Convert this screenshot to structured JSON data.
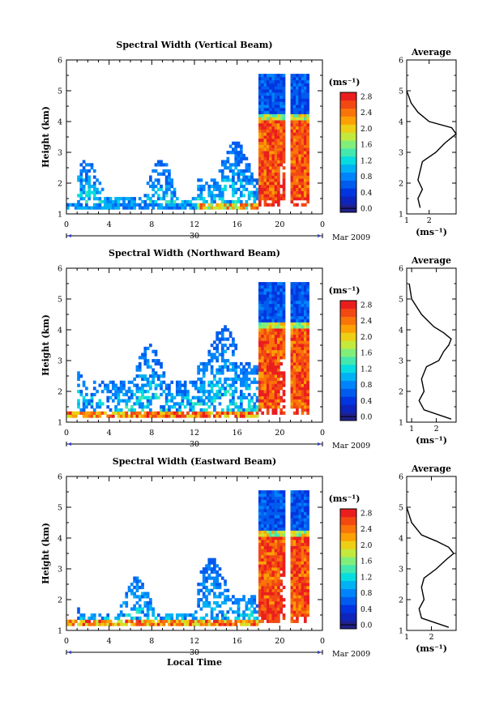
{
  "figure": {
    "xlabel": "Local Time",
    "average_title": "Average",
    "unit_label": "(ms⁻¹)",
    "date_day": "30",
    "date_month_year": "Mar 2009"
  },
  "chart_data": [
    {
      "type": "heatmap",
      "title": "Spectral Width (Vertical Beam)",
      "ylabel": "Height (km)",
      "xlim": [
        0,
        24
      ],
      "ylim": [
        1,
        6
      ],
      "xticks": [
        "0",
        "4",
        "8",
        "12",
        "16",
        "20",
        "0"
      ],
      "yticks": [
        "1",
        "2",
        "3",
        "4",
        "5",
        "6"
      ],
      "colorbar_ticks": [
        "0.0",
        "0.4",
        "0.8",
        "1.2",
        "1.6",
        "2.0",
        "2.4",
        "2.8"
      ],
      "colorbar_range": [
        0,
        3.0
      ],
      "average": {
        "xticks": [
          "1",
          "2"
        ],
        "xlim": [
          1,
          3.2
        ],
        "heights": [
          1.2,
          1.5,
          1.8,
          2.1,
          2.4,
          2.7,
          3.0,
          3.3,
          3.6,
          3.8,
          4.0,
          4.3,
          4.6,
          5.0
        ],
        "values": [
          1.6,
          1.5,
          1.7,
          1.5,
          1.6,
          1.7,
          2.3,
          2.7,
          3.2,
          3.0,
          2.0,
          1.5,
          1.2,
          1.0
        ]
      }
    },
    {
      "type": "heatmap",
      "title": "Spectral Width (Northward Beam)",
      "ylabel": "Height (km)",
      "xlim": [
        0,
        24
      ],
      "ylim": [
        1,
        6
      ],
      "xticks": [
        "0",
        "4",
        "8",
        "12",
        "16",
        "20",
        "0"
      ],
      "yticks": [
        "1",
        "2",
        "3",
        "4",
        "5",
        "6"
      ],
      "colorbar_ticks": [
        "0.0",
        "0.4",
        "0.8",
        "1.2",
        "1.6",
        "2.0",
        "2.4",
        "2.8"
      ],
      "colorbar_range": [
        0,
        3.0
      ],
      "average": {
        "xticks": [
          "1",
          "2"
        ],
        "xlim": [
          0.8,
          2.8
        ],
        "heights": [
          1.1,
          1.4,
          1.7,
          2.0,
          2.4,
          2.8,
          3.0,
          3.3,
          3.5,
          3.7,
          3.9,
          4.1,
          4.5,
          5.0,
          5.5
        ],
        "values": [
          2.6,
          1.5,
          1.3,
          1.5,
          1.4,
          1.6,
          2.1,
          2.3,
          2.5,
          2.6,
          2.3,
          1.9,
          1.4,
          1.0,
          0.9
        ]
      }
    },
    {
      "type": "heatmap",
      "title": "Spectral Width (Eastward Beam)",
      "ylabel": "Height (km)",
      "xlim": [
        0,
        24
      ],
      "ylim": [
        1,
        6
      ],
      "xticks": [
        "0",
        "4",
        "8",
        "12",
        "16",
        "20",
        "0"
      ],
      "yticks": [
        "1",
        "2",
        "3",
        "4",
        "5",
        "6"
      ],
      "colorbar_ticks": [
        "0.0",
        "0.4",
        "0.8",
        "1.2",
        "1.6",
        "2.0",
        "2.4",
        "2.8"
      ],
      "colorbar_range": [
        0,
        3.0
      ],
      "average": {
        "xticks": [
          "1",
          "2"
        ],
        "xlim": [
          1,
          3.0
        ],
        "heights": [
          1.1,
          1.4,
          1.7,
          2.0,
          2.4,
          2.7,
          3.0,
          3.3,
          3.5,
          3.7,
          3.9,
          4.1,
          4.5,
          5.0
        ],
        "values": [
          2.7,
          1.6,
          1.5,
          1.7,
          1.6,
          1.7,
          2.2,
          2.6,
          2.9,
          2.7,
          2.2,
          1.6,
          1.2,
          1.0
        ]
      }
    }
  ]
}
